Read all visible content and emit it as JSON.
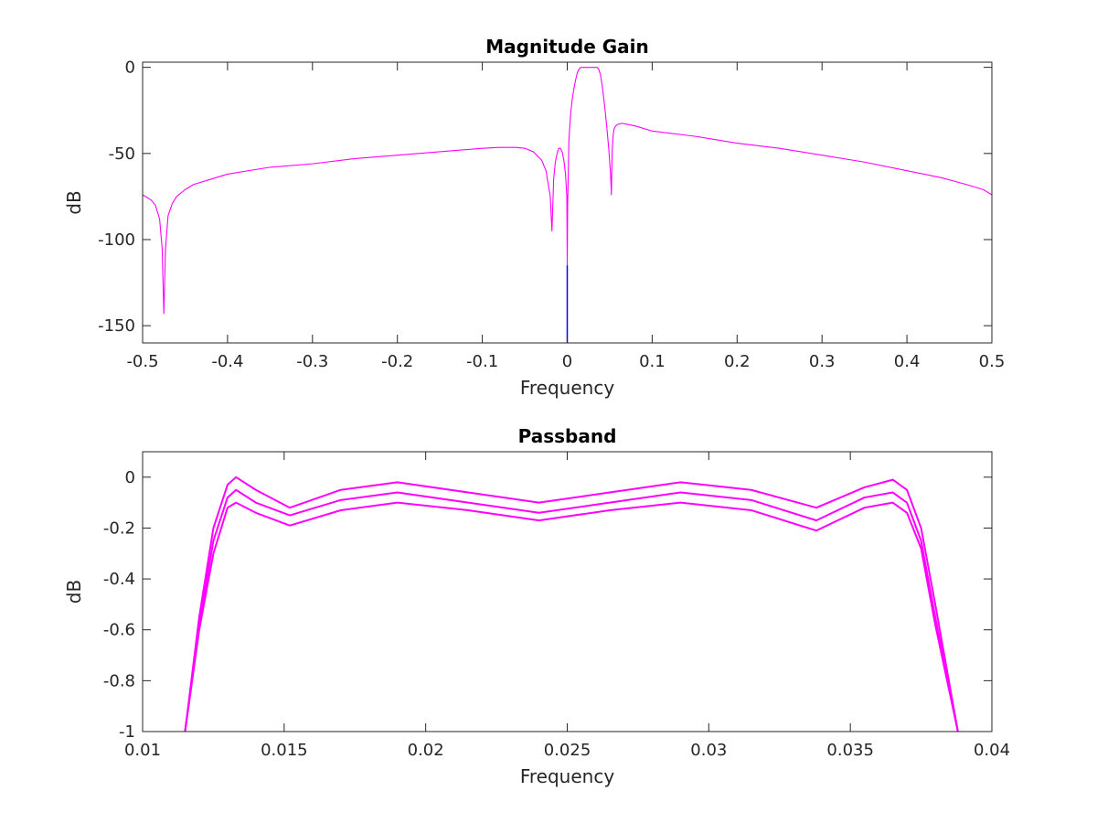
{
  "chart_data": [
    {
      "id": "magnitude",
      "type": "line",
      "title": "Magnitude Gain",
      "xlabel": "Frequency",
      "ylabel": "dB",
      "xlim": [
        -0.5,
        0.5
      ],
      "ylim": [
        -160,
        3
      ],
      "xticks": [
        -0.5,
        -0.4,
        -0.3,
        -0.2,
        -0.1,
        0,
        0.1,
        0.2,
        0.3,
        0.4,
        0.5
      ],
      "xtick_labels": [
        "-0.5",
        "-0.4",
        "-0.3",
        "-0.2",
        "-0.1",
        "0",
        "0.1",
        "0.2",
        "0.3",
        "0.4",
        "0.5"
      ],
      "yticks": [
        0,
        -50,
        -100,
        -150
      ],
      "ytick_labels": [
        "0",
        "-50",
        "-100",
        "-150"
      ],
      "grid": false,
      "series": [
        {
          "color": "#ff00ff",
          "x": [
            -0.5,
            -0.49,
            -0.485,
            -0.48,
            -0.477,
            -0.475,
            -0.473,
            -0.47,
            -0.465,
            -0.46,
            -0.45,
            -0.44,
            -0.42,
            -0.4,
            -0.35,
            -0.3,
            -0.25,
            -0.2,
            -0.15,
            -0.1,
            -0.08,
            -0.06,
            -0.05,
            -0.04,
            -0.03,
            -0.025,
            -0.02,
            -0.018,
            -0.017,
            -0.016,
            -0.014,
            -0.012,
            -0.01,
            -0.008,
            -0.006,
            -0.004,
            -0.002,
            -0.0005,
            0,
            0.0005,
            0.002,
            0.004,
            0.006,
            0.008,
            0.01,
            0.012,
            0.014,
            0.016,
            0.02,
            0.025,
            0.03,
            0.035,
            0.037,
            0.039,
            0.041,
            0.043,
            0.045,
            0.047,
            0.049,
            0.05,
            0.051,
            0.052,
            0.0525,
            0.053,
            0.054,
            0.055,
            0.057,
            0.06,
            0.065,
            0.07,
            0.08,
            0.1,
            0.15,
            0.2,
            0.25,
            0.3,
            0.35,
            0.4,
            0.44,
            0.47,
            0.49,
            0.5
          ],
          "y": [
            -74,
            -77,
            -80,
            -88,
            -105,
            -143,
            -105,
            -86,
            -79,
            -75,
            -71,
            -68,
            -65,
            -62,
            -58,
            -56,
            -53,
            -51,
            -49,
            -47,
            -46.5,
            -46.5,
            -47,
            -49,
            -54,
            -60,
            -75,
            -95,
            -80,
            -65,
            -55,
            -50,
            -47,
            -47,
            -49,
            -54,
            -62,
            -75,
            -116,
            -80,
            -42,
            -27,
            -18,
            -12,
            -7,
            -3,
            -1,
            0,
            0,
            0,
            0,
            0,
            -1,
            -4,
            -10,
            -18,
            -27,
            -37,
            -48,
            -55,
            -62,
            -74,
            -60,
            -48,
            -40,
            -36,
            -34,
            -33,
            -32.5,
            -33,
            -34,
            -37,
            -40,
            -44,
            -47,
            -51,
            -55,
            -60,
            -64,
            -68,
            -71,
            -74
          ]
        },
        {
          "color": "#0000ff",
          "x": [
            -0.0001,
            0.0001
          ],
          "y": [
            -160,
            -160
          ]
        }
      ]
    },
    {
      "id": "passband",
      "type": "line",
      "title": "Passband",
      "xlabel": "Frequency",
      "ylabel": "dB",
      "xlim": [
        0.01,
        0.04
      ],
      "ylim": [
        -1,
        0.1
      ],
      "xticks": [
        0.01,
        0.015,
        0.02,
        0.025,
        0.03,
        0.035,
        0.04
      ],
      "xtick_labels": [
        "0.01",
        "0.015",
        "0.02",
        "0.025",
        "0.03",
        "0.035",
        "0.04"
      ],
      "yticks": [
        0,
        -0.2,
        -0.4,
        -0.6,
        -0.8,
        -1
      ],
      "ytick_labels": [
        "0",
        "-0.2",
        "-0.4",
        "-0.6",
        "-0.8",
        "-1"
      ],
      "grid": false,
      "series": [
        {
          "color": "#ff00ff",
          "x": [
            0.0115,
            0.012,
            0.0125,
            0.013,
            0.0133,
            0.014,
            0.0152,
            0.017,
            0.019,
            0.0215,
            0.024,
            0.0265,
            0.029,
            0.0315,
            0.0338,
            0.0355,
            0.0365,
            0.037,
            0.0375,
            0.038,
            0.0388
          ],
          "y": [
            -1,
            -0.55,
            -0.2,
            -0.03,
            0,
            -0.05,
            -0.12,
            -0.05,
            -0.02,
            -0.06,
            -0.1,
            -0.06,
            -0.02,
            -0.05,
            -0.12,
            -0.04,
            -0.01,
            -0.05,
            -0.2,
            -0.5,
            -1
          ]
        },
        {
          "color": "#ff00ff",
          "x": [
            0.0115,
            0.012,
            0.0125,
            0.013,
            0.0133,
            0.014,
            0.0152,
            0.017,
            0.019,
            0.0215,
            0.024,
            0.0265,
            0.029,
            0.0315,
            0.0338,
            0.0355,
            0.0365,
            0.037,
            0.0375,
            0.038,
            0.0388
          ],
          "y": [
            -1,
            -0.58,
            -0.25,
            -0.08,
            -0.05,
            -0.1,
            -0.15,
            -0.09,
            -0.06,
            -0.1,
            -0.14,
            -0.1,
            -0.06,
            -0.09,
            -0.17,
            -0.08,
            -0.06,
            -0.1,
            -0.25,
            -0.55,
            -1
          ]
        },
        {
          "color": "#ff00ff",
          "x": [
            0.0115,
            0.012,
            0.0125,
            0.013,
            0.0133,
            0.014,
            0.0152,
            0.017,
            0.019,
            0.0215,
            0.024,
            0.0265,
            0.029,
            0.0315,
            0.0338,
            0.0355,
            0.0365,
            0.037,
            0.0375,
            0.038,
            0.0388
          ],
          "y": [
            -1,
            -0.6,
            -0.3,
            -0.12,
            -0.1,
            -0.14,
            -0.19,
            -0.13,
            -0.1,
            -0.13,
            -0.17,
            -0.13,
            -0.1,
            -0.13,
            -0.21,
            -0.12,
            -0.1,
            -0.14,
            -0.28,
            -0.58,
            -1
          ]
        }
      ]
    }
  ]
}
